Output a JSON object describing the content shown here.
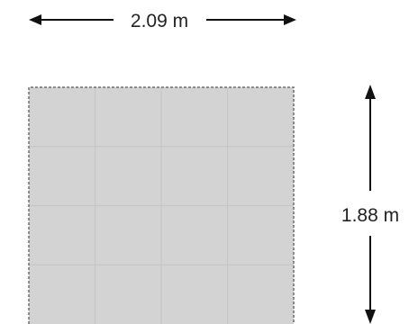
{
  "dimensions": {
    "width_label": "2.09 m",
    "height_label": "1.88 m"
  },
  "floor": {
    "tile_columns": 4,
    "tile_rows": 4
  },
  "colors": {
    "floor_fill": "#d3d3d3",
    "tile_line": "#c6c6c6",
    "border": "#6e6e6e",
    "arrow": "#111111",
    "label": "#222222"
  }
}
